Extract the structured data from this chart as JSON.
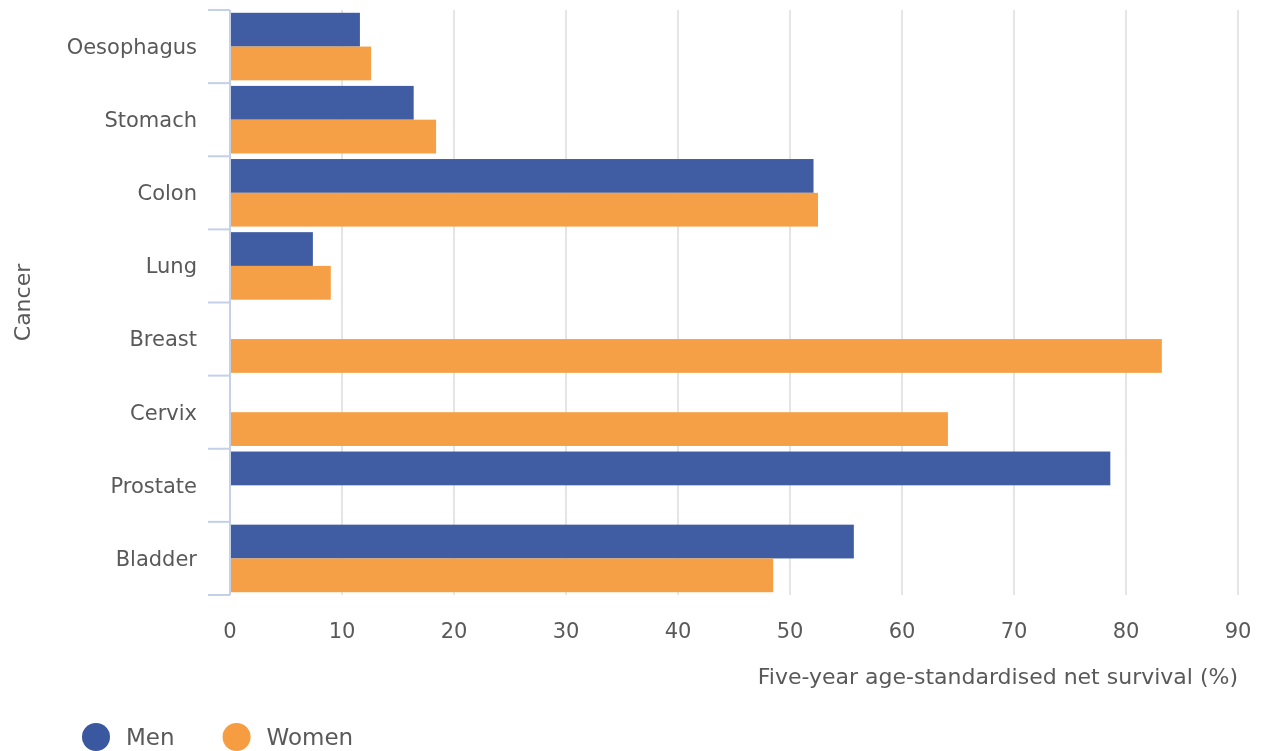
{
  "chart_data": {
    "type": "bar",
    "orientation": "horizontal",
    "ylabel": "Cancer",
    "xlabel": "Five-year age-standardised net survival (%)",
    "categories": [
      "Oesophagus",
      "Stomach",
      "Colon",
      "Lung",
      "Breast",
      "Cervix",
      "Prostate",
      "Bladder"
    ],
    "series": [
      {
        "name": "Men",
        "color": "#3a58a0",
        "values": [
          11.6,
          16.4,
          52.1,
          7.4,
          null,
          null,
          78.6,
          55.7
        ]
      },
      {
        "name": "Women",
        "color": "#f59d40",
        "values": [
          12.6,
          18.4,
          52.5,
          9.0,
          83.2,
          64.1,
          null,
          48.5
        ]
      }
    ],
    "xlim": [
      0,
      90
    ],
    "xticks": [
      0,
      10,
      20,
      30,
      40,
      50,
      60,
      70,
      80,
      90
    ],
    "grid": "x",
    "legend": "bottom left"
  }
}
